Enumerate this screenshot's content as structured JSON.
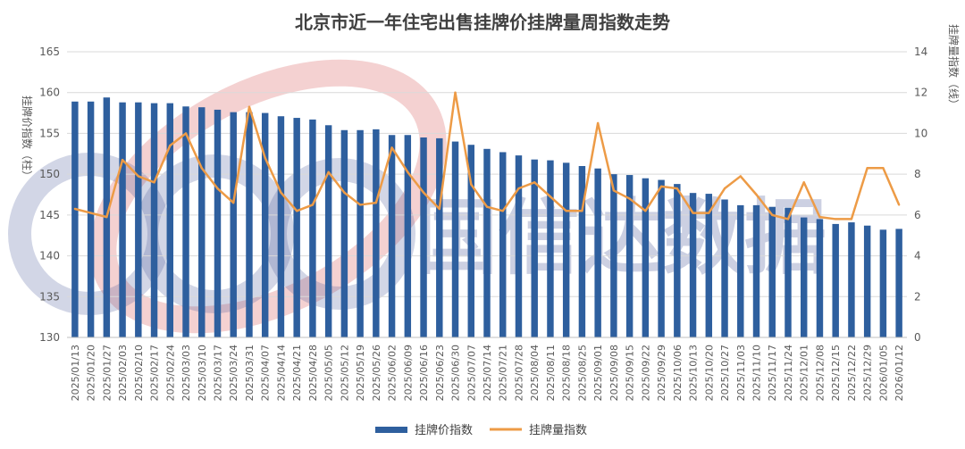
{
  "chart_data": {
    "type": "bar+line",
    "title": "北京市近一年住宅出售挂牌价挂牌量周指数走势",
    "y_left_label": "挂牌价指数（柱）",
    "y_right_label": "挂牌量指数（线）",
    "y_left_range": [
      130,
      165
    ],
    "y_left_ticks": [
      "130",
      "135",
      "140",
      "145",
      "150",
      "155",
      "160",
      "165"
    ],
    "y_right_range": [
      0,
      14
    ],
    "y_right_ticks": [
      "0",
      "2",
      "4",
      "6",
      "8",
      "10",
      "12",
      "14"
    ],
    "grid": true,
    "legend_position": "bottom",
    "colors": {
      "bar": "#2e5f9e",
      "line": "#ed9b46"
    },
    "categories": [
      "2025/01/13",
      "2025/01/20",
      "2025/01/27",
      "2025/02/03",
      "2025/02/10",
      "2025/02/17",
      "2025/02/24",
      "2025/03/03",
      "2025/03/10",
      "2025/03/17",
      "2025/03/24",
      "2025/03/31",
      "2025/04/07",
      "2025/04/14",
      "2025/04/21",
      "2025/04/28",
      "2025/05/05",
      "2025/05/12",
      "2025/05/19",
      "2025/05/26",
      "2025/06/02",
      "2025/06/09",
      "2025/06/16",
      "2025/06/23",
      "2025/06/30",
      "2025/07/07",
      "2025/07/14",
      "2025/07/21",
      "2025/07/28",
      "2025/08/04",
      "2025/08/11",
      "2025/08/18",
      "2025/08/25",
      "2025/09/01",
      "2025/09/08",
      "2025/09/15",
      "2025/09/22",
      "2025/09/29",
      "2025/10/06",
      "2025/10/13",
      "2025/10/20",
      "2025/10/27",
      "2025/11/03",
      "2025/11/10",
      "2025/11/17",
      "2025/11/24",
      "2025/12/01",
      "2025/12/08",
      "2025/12/15",
      "2025/12/22",
      "2025/12/29",
      "2026/01/05",
      "2026/01/12"
    ],
    "series": [
      {
        "name": "挂牌价指数",
        "type": "bar",
        "axis": "left",
        "values": [
          158.9,
          158.9,
          159.4,
          158.8,
          158.8,
          158.7,
          158.7,
          158.3,
          158.2,
          157.9,
          157.6,
          157.6,
          157.5,
          157.1,
          156.9,
          156.7,
          156.0,
          155.4,
          155.4,
          155.5,
          154.8,
          154.8,
          154.5,
          154.4,
          154.0,
          153.6,
          153.1,
          152.7,
          152.3,
          151.8,
          151.7,
          151.4,
          151.0,
          150.7,
          150.0,
          149.9,
          149.5,
          149.3,
          148.8,
          147.7,
          147.6,
          146.9,
          146.2,
          146.2,
          146.0,
          145.9,
          144.7,
          144.5,
          143.9,
          144.1,
          143.7,
          143.2,
          143.3
        ]
      },
      {
        "name": "挂牌量指数",
        "type": "line",
        "axis": "right",
        "values": [
          6.3,
          6.1,
          5.9,
          8.7,
          7.9,
          7.6,
          9.4,
          10.0,
          8.3,
          7.3,
          6.6,
          11.3,
          8.8,
          7.1,
          6.2,
          6.5,
          8.1,
          7.1,
          6.5,
          6.6,
          9.3,
          8.1,
          7.1,
          6.3,
          12.0,
          7.5,
          6.4,
          6.2,
          7.3,
          7.6,
          6.9,
          6.2,
          6.2,
          10.5,
          7.2,
          6.8,
          6.2,
          7.4,
          7.3,
          6.1,
          6.1,
          7.3,
          7.9,
          7.0,
          6.0,
          5.8,
          7.6,
          5.9,
          5.8,
          5.8,
          8.3,
          8.3,
          6.5
        ]
      }
    ]
  },
  "watermark": {
    "logo_text": "GXD",
    "text": "国信达数据"
  }
}
